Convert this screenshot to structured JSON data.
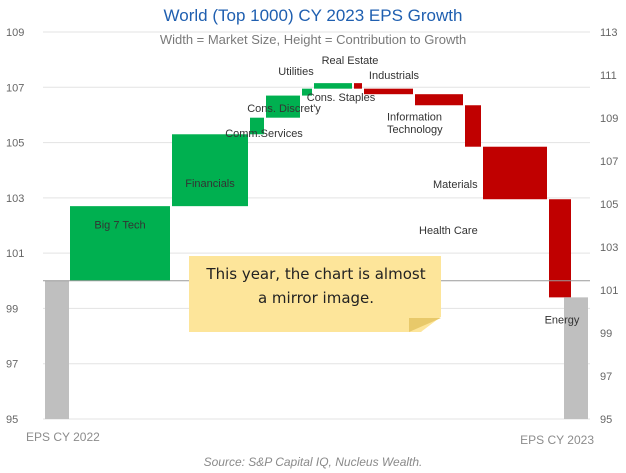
{
  "title": "World (Top 1000) CY 2023 EPS Growth",
  "subtitle": "Width = Market Size, Height = Contribution to Growth",
  "source": "Source: S&P Capital IQ, Nucleus Wealth.",
  "note": {
    "line1": "This year, the chart is almost",
    "line2": "a mirror image."
  },
  "colors": {
    "positive": "#00b050",
    "negative": "#c00000",
    "total": "#bfbfbf",
    "title": "#1f5fb0",
    "note": "#fde59a"
  },
  "chart_data": {
    "type": "waterfall",
    "title": "World (Top 1000) CY 2023 EPS Growth",
    "subtitle": "Width = Market Size, Height = Contribution to Growth",
    "left_axis": {
      "ticks": [
        95,
        97,
        99,
        101,
        103,
        105,
        107,
        109
      ],
      "range": [
        95,
        109
      ]
    },
    "right_axis": {
      "ticks": [
        95,
        97,
        99,
        101,
        103,
        105,
        107,
        109,
        111,
        113
      ],
      "range": [
        95,
        113
      ]
    },
    "baseline": 100,
    "start": {
      "label": "EPS CY 2022",
      "value": 100
    },
    "end": {
      "label": "EPS CY 2023",
      "value": 99.4
    },
    "rise": [
      {
        "label": "Big 7 Tech",
        "from": 100,
        "to": 102.7,
        "size": 100
      },
      {
        "label": "Financials",
        "from": 102.7,
        "to": 105.3,
        "size": 76
      },
      {
        "label": "Comm.Services",
        "from": 105.3,
        "to": 105.9,
        "size": 14
      },
      {
        "label": "Cons. Discret'y",
        "from": 105.9,
        "to": 106.7,
        "size": 34
      },
      {
        "label": "Utilities",
        "from": 106.7,
        "to": 106.95,
        "size": 10
      },
      {
        "label": "Cons. Staples",
        "from": 106.95,
        "to": 107.15,
        "size": 38
      }
    ],
    "fall": [
      {
        "label": "Real Estate",
        "from": 107.15,
        "to": 106.95,
        "size": 8
      },
      {
        "label": "Industrials",
        "from": 106.95,
        "to": 106.75,
        "size": 49
      },
      {
        "label": "Information Technology",
        "from": 106.75,
        "to": 106.35,
        "size": 48
      },
      {
        "label": "Materials",
        "from": 106.35,
        "to": 104.85,
        "size": 16
      },
      {
        "label": "Health Care",
        "from": 104.85,
        "to": 102.95,
        "size": 64
      },
      {
        "label": "Energy",
        "from": 102.95,
        "to": 99.4,
        "size": 22
      }
    ]
  }
}
